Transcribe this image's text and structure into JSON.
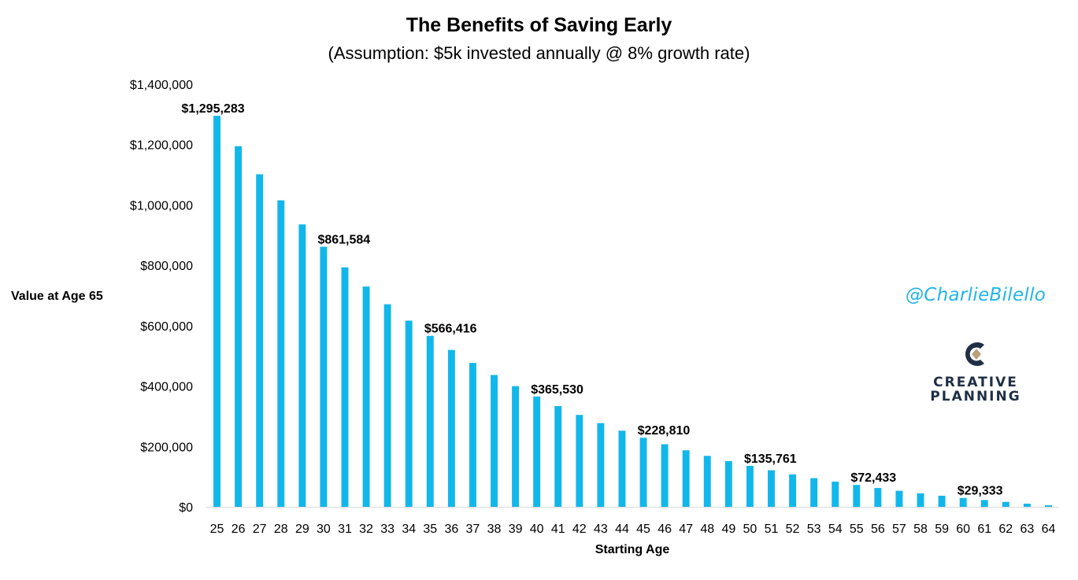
{
  "chart_data": {
    "type": "bar",
    "title": "The Benefits of Saving Early",
    "subtitle": "(Assumption: $5k invested annually @ 8% growth rate)",
    "xlabel": "Starting Age",
    "ylabel": "Value at Age 65",
    "ylim": [
      0,
      1400000
    ],
    "y_ticks": [
      0,
      200000,
      400000,
      600000,
      800000,
      1000000,
      1200000,
      1400000
    ],
    "y_tick_labels": [
      "$0",
      "$200,000",
      "$400,000",
      "$600,000",
      "$800,000",
      "$1,000,000",
      "$1,200,000",
      "$1,400,000"
    ],
    "categories": [
      "25",
      "26",
      "27",
      "28",
      "29",
      "30",
      "31",
      "32",
      "33",
      "34",
      "35",
      "36",
      "37",
      "38",
      "39",
      "40",
      "41",
      "42",
      "43",
      "44",
      "45",
      "46",
      "47",
      "48",
      "49",
      "50",
      "51",
      "52",
      "53",
      "54",
      "55",
      "56",
      "57",
      "58",
      "59",
      "60",
      "61",
      "62",
      "63",
      "64"
    ],
    "values": [
      1295283,
      1194707,
      1101580,
      1015352,
      935511,
      861584,
      793133,
      729753,
      671068,
      616730,
      566416,
      519830,
      476694,
      436753,
      399771,
      365530,
      333824,
      304467,
      277285,
      252116,
      228810,
      207232,
      187252,
      168751,
      151621,
      135761,
      121075,
      107477,
      94886,
      83228,
      72433,
      62438,
      53184,
      44615,
      36681,
      29333,
      22530,
      16232,
      10400,
      5000
    ],
    "data_labels": [
      {
        "category": "25",
        "text": "$1,295,283"
      },
      {
        "category": "30",
        "text": "$861,584"
      },
      {
        "category": "35",
        "text": "$566,416"
      },
      {
        "category": "40",
        "text": "$365,530"
      },
      {
        "category": "45",
        "text": "$228,810"
      },
      {
        "category": "50",
        "text": "$135,761"
      },
      {
        "category": "55",
        "text": "$72,433"
      },
      {
        "category": "60",
        "text": "$29,333"
      }
    ],
    "bar_color": "#12b7ea",
    "grid": false,
    "legend": "none"
  },
  "branding": {
    "handle": "@CharlieBilello",
    "handle_color": "#22b5e8",
    "logo_line_1": "CREATIVE",
    "logo_line_2": "PLANNING",
    "logo_dark": "#1f2f45",
    "logo_gold": "#b8a27a"
  }
}
